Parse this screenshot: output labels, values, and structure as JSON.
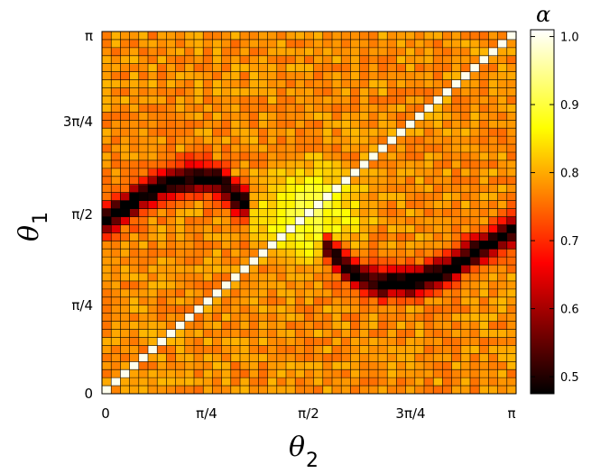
{
  "chart_data": {
    "type": "heatmap",
    "xlabel": "θ",
    "xlabel_sub": "2",
    "ylabel": "θ",
    "ylabel_sub": "1",
    "x_tick_labels": [
      "0",
      "π/4",
      "π/2",
      "3π/4",
      "π"
    ],
    "y_tick_labels": [
      "0",
      "π/4",
      "π/2",
      "3π/4",
      "π"
    ],
    "xlim": [
      0,
      3.1416
    ],
    "ylim": [
      0,
      3.1416
    ],
    "grid_size": 45,
    "grid_lines": true,
    "colorbar": {
      "title": "α",
      "range": [
        0.475,
        1.01
      ],
      "tick_labels": [
        "0.5",
        "0.6",
        "0.7",
        "0.8",
        "0.9",
        "1.0"
      ],
      "ticks": [
        0.5,
        0.6,
        0.7,
        0.8,
        0.9,
        1.0
      ],
      "colormap": "hot",
      "placement": "right"
    },
    "background_alpha": 0.78,
    "diagonal_alpha": 1.0,
    "valley_left": {
      "description_points_theta2": [
        0.0,
        0.1,
        0.3,
        0.5,
        0.7,
        0.9,
        1.05
      ],
      "description_points_theta1": [
        1.5,
        1.55,
        1.72,
        1.82,
        1.88,
        1.85,
        1.65
      ],
      "min_alpha": 0.48
    },
    "valley_right": {
      "description_points_theta2": [
        1.7,
        1.9,
        2.1,
        2.4,
        2.6,
        2.85,
        3.1
      ],
      "description_points_theta1": [
        1.28,
        1.05,
        0.95,
        0.98,
        1.05,
        1.25,
        1.42
      ],
      "min_alpha": 0.49
    }
  }
}
